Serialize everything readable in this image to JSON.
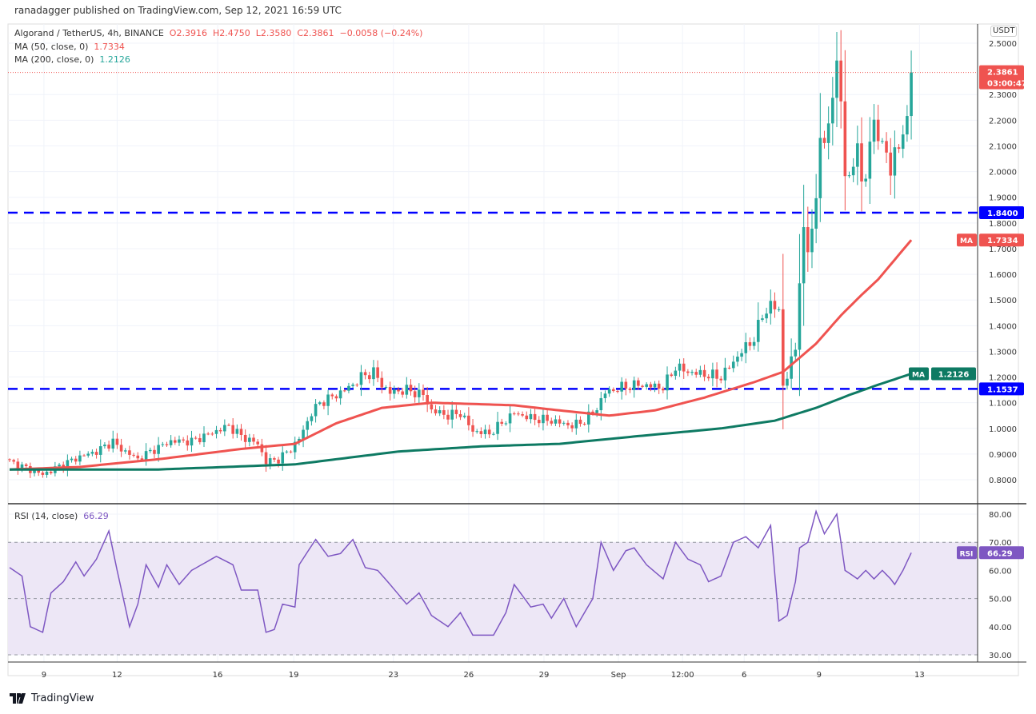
{
  "header": {
    "published": "ranadagger published on TradingView.com, Sep 12, 2021 16:59 UTC"
  },
  "legend": {
    "symbol": "Algorand / TetherUS, 4h, BINANCE",
    "open": "O2.3916",
    "high": "H2.4750",
    "low": "L2.3580",
    "close": "C2.3861",
    "change": "−0.0058 (−0.24%)",
    "ma50_label": "MA (50, close, 0)",
    "ma50_value": "1.7334",
    "ma200_label": "MA (200, close, 0)",
    "ma200_value": "1.2126",
    "rsi_label": "RSI (14, close)",
    "rsi_value": "66.29"
  },
  "axis": {
    "currency": "USDT",
    "last_price": "2.3861",
    "countdown": "03:00:47",
    "level_high": "1.8400",
    "level_low": "1.1537",
    "ma_tag": "MA",
    "ma50_tag_value": "1.7334",
    "ma200_tag_value": "1.2126",
    "rsi_tag": "RSI",
    "rsi_tag_value": "66.29"
  },
  "footer": {
    "brand": "TradingView"
  },
  "colors": {
    "up": "#26a69a",
    "down": "#ef5350",
    "ma50": "#ef5350",
    "ma200": "#0e7a63",
    "level": "#0000ff",
    "rsi": "#7e57c2",
    "rsi_band": "#ede7f6"
  },
  "chart_data": {
    "type": "candlestick",
    "title": "Algorand / TetherUS, 4h, BINANCE",
    "ylim": [
      0.75,
      2.56
    ],
    "price_ticks": [
      "0.8000",
      "0.9000",
      "1.0000",
      "1.1000",
      "1.2000",
      "1.3000",
      "1.4000",
      "1.5000",
      "1.6000",
      "1.7000",
      "1.8000",
      "1.9000",
      "2.0000",
      "2.1000",
      "2.2000",
      "2.3000",
      "2.5000"
    ],
    "rsi_ticks": [
      "30.00",
      "40.00",
      "50.00",
      "60.00",
      "70.00",
      "80.00"
    ],
    "time_ticks": [
      [
        "9",
        8.3
      ],
      [
        "12",
        26
      ],
      [
        "16",
        50.3
      ],
      [
        "19",
        68.7
      ],
      [
        "23",
        92.8
      ],
      [
        "26",
        111
      ],
      [
        "29",
        129.2
      ],
      [
        "Sep",
        147.2
      ],
      [
        "12:00",
        162.7
      ],
      [
        "6",
        177.6
      ],
      [
        "9",
        195.7
      ],
      [
        "13",
        220
      ]
    ],
    "close_keypoints": [
      [
        0,
        0.87
      ],
      [
        8,
        0.82
      ],
      [
        13,
        0.86
      ],
      [
        17,
        0.89
      ],
      [
        21,
        0.91
      ],
      [
        25,
        0.95
      ],
      [
        26,
        0.93
      ],
      [
        31,
        0.88
      ],
      [
        34,
        0.91
      ],
      [
        39,
        0.95
      ],
      [
        44,
        0.95
      ],
      [
        50,
        0.99
      ],
      [
        53,
        1.01
      ],
      [
        56,
        0.97
      ],
      [
        60,
        0.94
      ],
      [
        62,
        0.87
      ],
      [
        65,
        0.88
      ],
      [
        68,
        0.92
      ],
      [
        70,
        0.96
      ],
      [
        73,
        1.06
      ],
      [
        75,
        1.1
      ],
      [
        79,
        1.13
      ],
      [
        83,
        1.17
      ],
      [
        85,
        1.2
      ],
      [
        88,
        1.22
      ],
      [
        90,
        1.17
      ],
      [
        92,
        1.14
      ],
      [
        96,
        1.15
      ],
      [
        100,
        1.13
      ],
      [
        102,
        1.07
      ],
      [
        106,
        1.05
      ],
      [
        109,
        1.06
      ],
      [
        112,
        0.99
      ],
      [
        116,
        0.98
      ],
      [
        119,
        1.02
      ],
      [
        122,
        1.06
      ],
      [
        126,
        1.04
      ],
      [
        131,
        1.03
      ],
      [
        136,
        1.01
      ],
      [
        139,
        1.03
      ],
      [
        142,
        1.08
      ],
      [
        144,
        1.14
      ],
      [
        148,
        1.16
      ],
      [
        152,
        1.17
      ],
      [
        158,
        1.16
      ],
      [
        161,
        1.24
      ],
      [
        164,
        1.22
      ],
      [
        168,
        1.21
      ],
      [
        172,
        1.2
      ],
      [
        175,
        1.26
      ],
      [
        177,
        1.3
      ],
      [
        180,
        1.35
      ],
      [
        182,
        1.44
      ],
      [
        184,
        1.48
      ],
      [
        186,
        1.46
      ],
      [
        187,
        1.17
      ],
      [
        188,
        1.2
      ],
      [
        190,
        1.32
      ],
      [
        191,
        1.58
      ],
      [
        192,
        1.75
      ],
      [
        193,
        1.7
      ],
      [
        195,
        1.88
      ],
      [
        196,
        2.14
      ],
      [
        197,
        2.1
      ],
      [
        199,
        2.3
      ],
      [
        200,
        2.39
      ],
      [
        201,
        2.3
      ],
      [
        202,
        2.0
      ],
      [
        203,
        1.95
      ],
      [
        205,
        2.12
      ],
      [
        206,
        1.95
      ],
      [
        207,
        1.98
      ],
      [
        209,
        2.22
      ],
      [
        210,
        2.13
      ],
      [
        211,
        2.08
      ],
      [
        212,
        2.1
      ],
      [
        213,
        2.0
      ],
      [
        214,
        2.06
      ],
      [
        216,
        2.15
      ],
      [
        217,
        2.21
      ],
      [
        218,
        2.3861
      ]
    ],
    "ma50_keypoints": [
      [
        0,
        0.84
      ],
      [
        17,
        0.85
      ],
      [
        36,
        0.88
      ],
      [
        56,
        0.92
      ],
      [
        69,
        0.94
      ],
      [
        79,
        1.02
      ],
      [
        90,
        1.08
      ],
      [
        102,
        1.1
      ],
      [
        122,
        1.09
      ],
      [
        133,
        1.07
      ],
      [
        145,
        1.05
      ],
      [
        156,
        1.07
      ],
      [
        168,
        1.12
      ],
      [
        180,
        1.18
      ],
      [
        187,
        1.22
      ],
      [
        195,
        1.33
      ],
      [
        201,
        1.44
      ],
      [
        206,
        1.52
      ],
      [
        210,
        1.58
      ],
      [
        218,
        1.7334
      ]
    ],
    "ma200_keypoints": [
      [
        0,
        0.84
      ],
      [
        36,
        0.84
      ],
      [
        69,
        0.86
      ],
      [
        94,
        0.91
      ],
      [
        114,
        0.93
      ],
      [
        133,
        0.94
      ],
      [
        152,
        0.97
      ],
      [
        172,
        1.0
      ],
      [
        185,
        1.03
      ],
      [
        195,
        1.08
      ],
      [
        203,
        1.13
      ],
      [
        210,
        1.17
      ],
      [
        218,
        1.2126
      ]
    ],
    "levels": [
      1.84,
      1.1537
    ],
    "rsi_keypoints": [
      [
        0,
        61
      ],
      [
        3,
        58
      ],
      [
        5,
        40
      ],
      [
        8,
        38
      ],
      [
        10,
        52
      ],
      [
        13,
        56
      ],
      [
        16,
        63
      ],
      [
        18,
        58
      ],
      [
        21,
        64
      ],
      [
        24,
        74
      ],
      [
        26,
        60
      ],
      [
        29,
        40
      ],
      [
        31,
        48
      ],
      [
        33,
        62
      ],
      [
        36,
        54
      ],
      [
        38,
        62
      ],
      [
        41,
        55
      ],
      [
        44,
        60
      ],
      [
        50,
        65
      ],
      [
        54,
        62
      ],
      [
        56,
        53
      ],
      [
        60,
        53
      ],
      [
        62,
        38
      ],
      [
        64,
        39
      ],
      [
        66,
        48
      ],
      [
        69,
        47
      ],
      [
        70,
        62
      ],
      [
        74,
        71
      ],
      [
        77,
        65
      ],
      [
        80,
        66
      ],
      [
        83,
        71
      ],
      [
        86,
        61
      ],
      [
        89,
        60
      ],
      [
        92,
        55
      ],
      [
        96,
        48
      ],
      [
        99,
        52
      ],
      [
        102,
        44
      ],
      [
        106,
        40
      ],
      [
        109,
        45
      ],
      [
        112,
        37
      ],
      [
        117,
        37
      ],
      [
        120,
        45
      ],
      [
        122,
        55
      ],
      [
        126,
        47
      ],
      [
        129,
        48
      ],
      [
        131,
        43
      ],
      [
        134,
        50
      ],
      [
        137,
        40
      ],
      [
        141,
        50
      ],
      [
        143,
        70
      ],
      [
        146,
        60
      ],
      [
        149,
        67
      ],
      [
        151,
        68
      ],
      [
        154,
        62
      ],
      [
        158,
        57
      ],
      [
        161,
        70
      ],
      [
        164,
        64
      ],
      [
        167,
        62
      ],
      [
        169,
        56
      ],
      [
        172,
        58
      ],
      [
        175,
        70
      ],
      [
        178,
        72
      ],
      [
        181,
        68
      ],
      [
        184,
        76
      ],
      [
        186,
        42
      ],
      [
        188,
        44
      ],
      [
        190,
        56
      ],
      [
        191,
        68
      ],
      [
        193,
        70
      ],
      [
        195,
        81
      ],
      [
        197,
        73
      ],
      [
        200,
        80
      ],
      [
        202,
        60
      ],
      [
        205,
        57
      ],
      [
        207,
        60
      ],
      [
        209,
        57
      ],
      [
        211,
        60
      ],
      [
        213,
        57
      ],
      [
        214,
        55
      ],
      [
        216,
        60
      ],
      [
        218,
        66.29
      ]
    ]
  }
}
